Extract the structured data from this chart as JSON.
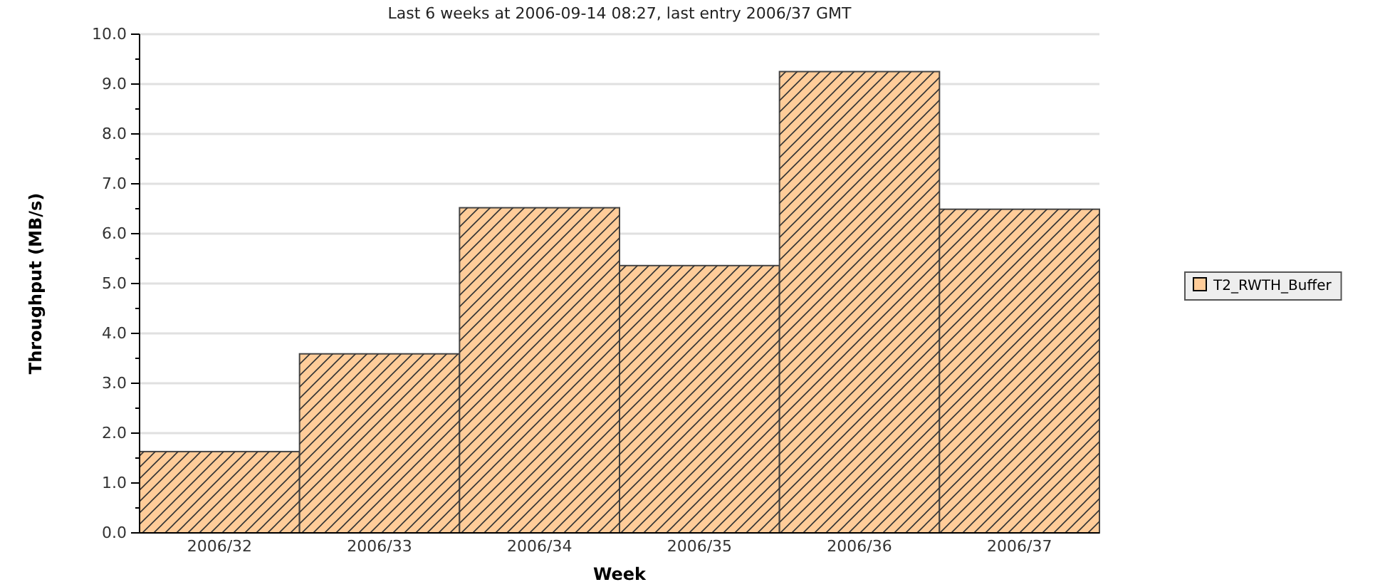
{
  "chart_data": {
    "type": "bar",
    "title": "Last 6 weeks at 2006-09-14 08:27, last entry 2006/37 GMT",
    "xlabel": "Week",
    "ylabel": "Throughput (MB/s)",
    "categories": [
      "2006/32",
      "2006/33",
      "2006/34",
      "2006/35",
      "2006/36",
      "2006/37"
    ],
    "series": [
      {
        "name": "T2_RWTH_Buffer",
        "color": "#ffcc99",
        "values": [
          1.63,
          3.59,
          6.52,
          5.36,
          9.25,
          6.49
        ]
      }
    ],
    "ylim": [
      0,
      10
    ],
    "yticks": [
      {
        "value": 0,
        "label": "0.0"
      },
      {
        "value": 1,
        "label": "1.0"
      },
      {
        "value": 2,
        "label": "2.0"
      },
      {
        "value": 3,
        "label": "3.0"
      },
      {
        "value": 4,
        "label": "4.0"
      },
      {
        "value": 5,
        "label": "5.0"
      },
      {
        "value": 6,
        "label": "6.0"
      },
      {
        "value": 7,
        "label": "7.0"
      },
      {
        "value": 8,
        "label": "8.0"
      },
      {
        "value": 9,
        "label": "9.0"
      },
      {
        "value": 10,
        "label": "10.0"
      }
    ],
    "grid": "y",
    "legend": "right"
  }
}
